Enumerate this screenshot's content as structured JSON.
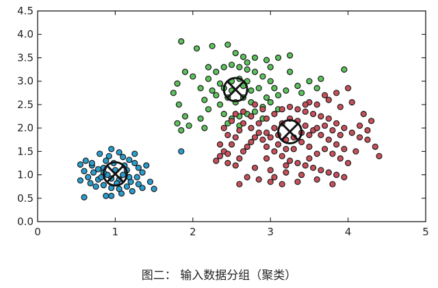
{
  "caption": "图二： 输入数据分组（聚类）",
  "chart_data": {
    "type": "scatter",
    "title": "",
    "xlabel": "",
    "ylabel": "",
    "xlim": [
      0,
      5
    ],
    "ylim": [
      0,
      4.5
    ],
    "x_ticks": [
      "0",
      "1",
      "2",
      "3",
      "4",
      "5"
    ],
    "y_ticks": [
      "0.0",
      "0.5",
      "1.0",
      "1.5",
      "2.0",
      "2.5",
      "3.0",
      "3.5",
      "4.0",
      "4.5"
    ],
    "grid": false,
    "legend": "none",
    "series": [
      {
        "color": "#2a9dcf",
        "centroid": [
          1.0,
          1.02
        ],
        "points": [
          [
            0.55,
            1.22
          ],
          [
            0.62,
            1.3
          ],
          [
            0.7,
            1.2
          ],
          [
            0.72,
            1.05
          ],
          [
            0.8,
            1.45
          ],
          [
            0.85,
            1.15
          ],
          [
            0.78,
            0.9
          ],
          [
            0.65,
            0.95
          ],
          [
            0.55,
            0.88
          ],
          [
            0.6,
            1.08
          ],
          [
            0.88,
            1.3
          ],
          [
            0.92,
            1.4
          ],
          [
            0.95,
            1.55
          ],
          [
            1.05,
            1.48
          ],
          [
            1.1,
            1.38
          ],
          [
            1.18,
            1.32
          ],
          [
            1.25,
            1.25
          ],
          [
            1.3,
            1.15
          ],
          [
            1.35,
            1.05
          ],
          [
            1.28,
            0.95
          ],
          [
            1.2,
            0.85
          ],
          [
            1.15,
            0.75
          ],
          [
            1.05,
            0.7
          ],
          [
            0.95,
            0.72
          ],
          [
            0.85,
            0.78
          ],
          [
            0.75,
            0.75
          ],
          [
            0.68,
            0.82
          ],
          [
            0.9,
            1.0
          ],
          [
            1.0,
            1.1
          ],
          [
            1.1,
            1.0
          ],
          [
            1.05,
            0.9
          ],
          [
            0.95,
            0.92
          ],
          [
            1.15,
            1.1
          ],
          [
            0.85,
            1.05
          ],
          [
            1.4,
            1.2
          ],
          [
            1.45,
            0.85
          ],
          [
            1.5,
            0.7
          ],
          [
            1.35,
            0.72
          ],
          [
            1.22,
            0.65
          ],
          [
            1.08,
            0.6
          ],
          [
            0.95,
            0.55
          ],
          [
            0.88,
            0.55
          ],
          [
            0.6,
            0.52
          ],
          [
            1.25,
            1.45
          ],
          [
            0.98,
            1.25
          ],
          [
            1.12,
            1.2
          ],
          [
            0.78,
            1.12
          ],
          [
            1.02,
            0.82
          ],
          [
            0.82,
            0.95
          ],
          [
            1.18,
            0.95
          ],
          [
            1.3,
            0.8
          ],
          [
            0.7,
            1.25
          ],
          [
            1.85,
            1.5
          ]
        ]
      },
      {
        "color": "#5cc25c",
        "centroid": [
          2.55,
          2.82
        ],
        "points": [
          [
            1.85,
            3.85
          ],
          [
            2.05,
            3.7
          ],
          [
            2.25,
            3.75
          ],
          [
            2.45,
            3.78
          ],
          [
            2.55,
            3.6
          ],
          [
            2.65,
            3.52
          ],
          [
            2.8,
            3.5
          ],
          [
            2.95,
            3.45
          ],
          [
            3.1,
            3.5
          ],
          [
            3.25,
            3.55
          ],
          [
            1.9,
            3.2
          ],
          [
            1.8,
            2.95
          ],
          [
            1.75,
            2.75
          ],
          [
            1.82,
            2.5
          ],
          [
            1.9,
            2.25
          ],
          [
            1.8,
            2.1
          ],
          [
            1.95,
            2.05
          ],
          [
            1.85,
            1.95
          ],
          [
            2.1,
            2.2
          ],
          [
            2.2,
            2.4
          ],
          [
            2.15,
            2.6
          ],
          [
            2.1,
            2.85
          ],
          [
            2.2,
            3.05
          ],
          [
            2.3,
            3.2
          ],
          [
            2.4,
            3.3
          ],
          [
            2.5,
            3.35
          ],
          [
            2.6,
            3.3
          ],
          [
            2.7,
            3.25
          ],
          [
            2.8,
            3.2
          ],
          [
            2.9,
            3.1
          ],
          [
            3.0,
            3.0
          ],
          [
            3.05,
            2.85
          ],
          [
            3.1,
            2.7
          ],
          [
            3.0,
            2.55
          ],
          [
            2.9,
            2.45
          ],
          [
            2.8,
            2.35
          ],
          [
            2.7,
            2.3
          ],
          [
            2.6,
            2.25
          ],
          [
            2.5,
            2.2
          ],
          [
            2.4,
            2.3
          ],
          [
            2.35,
            2.5
          ],
          [
            2.3,
            2.7
          ],
          [
            2.4,
            2.85
          ],
          [
            2.5,
            3.0
          ],
          [
            2.6,
            3.05
          ],
          [
            2.7,
            3.0
          ],
          [
            2.75,
            2.8
          ],
          [
            2.65,
            2.65
          ],
          [
            2.55,
            2.55
          ],
          [
            2.45,
            2.65
          ],
          [
            2.5,
            2.8
          ],
          [
            2.65,
            2.9
          ],
          [
            2.85,
            2.85
          ],
          [
            2.95,
            2.65
          ],
          [
            2.75,
            2.55
          ],
          [
            2.35,
            2.95
          ],
          [
            2.25,
            2.8
          ],
          [
            3.2,
            2.8
          ],
          [
            3.35,
            2.9
          ],
          [
            3.5,
            3.0
          ],
          [
            3.4,
            2.75
          ],
          [
            3.25,
            3.2
          ],
          [
            3.65,
            3.05
          ],
          [
            3.95,
            3.25
          ],
          [
            3.6,
            2.85
          ],
          [
            2.0,
            3.1
          ],
          [
            2.15,
            2.0
          ],
          [
            2.45,
            2.1
          ],
          [
            2.6,
            2.05
          ],
          [
            2.9,
            2.2
          ],
          [
            3.1,
            2.4
          ],
          [
            2.2,
            3.3
          ],
          [
            2.7,
            3.4
          ],
          [
            3.0,
            3.3
          ]
        ]
      },
      {
        "color": "#c8505a",
        "centroid": [
          3.25,
          1.92
        ],
        "points": [
          [
            2.3,
            1.3
          ],
          [
            2.35,
            1.4
          ],
          [
            2.4,
            1.5
          ],
          [
            2.45,
            1.25
          ],
          [
            2.55,
            1.2
          ],
          [
            2.6,
            1.35
          ],
          [
            2.65,
            1.5
          ],
          [
            2.7,
            1.6
          ],
          [
            2.75,
            1.7
          ],
          [
            2.8,
            1.8
          ],
          [
            2.85,
            1.9
          ],
          [
            2.75,
            2.0
          ],
          [
            2.65,
            2.1
          ],
          [
            2.6,
            1.95
          ],
          [
            2.55,
            1.8
          ],
          [
            2.5,
            1.65
          ],
          [
            2.45,
            1.85
          ],
          [
            2.4,
            2.0
          ],
          [
            2.5,
            2.15
          ],
          [
            2.55,
            2.3
          ],
          [
            2.65,
            2.35
          ],
          [
            2.75,
            2.25
          ],
          [
            2.85,
            2.1
          ],
          [
            2.95,
            2.2
          ],
          [
            3.05,
            2.3
          ],
          [
            3.15,
            2.4
          ],
          [
            3.25,
            2.45
          ],
          [
            3.35,
            2.4
          ],
          [
            3.45,
            2.35
          ],
          [
            3.55,
            2.3
          ],
          [
            3.65,
            2.25
          ],
          [
            3.75,
            2.2
          ],
          [
            3.85,
            2.1
          ],
          [
            3.95,
            2.0
          ],
          [
            4.05,
            1.9
          ],
          [
            4.15,
            1.8
          ],
          [
            4.25,
            1.75
          ],
          [
            4.35,
            1.6
          ],
          [
            4.4,
            1.4
          ],
          [
            4.1,
            1.5
          ],
          [
            3.95,
            1.55
          ],
          [
            3.85,
            1.65
          ],
          [
            3.75,
            1.75
          ],
          [
            3.65,
            1.85
          ],
          [
            3.55,
            1.95
          ],
          [
            3.45,
            2.05
          ],
          [
            3.35,
            2.15
          ],
          [
            3.25,
            2.2
          ],
          [
            3.15,
            2.1
          ],
          [
            3.05,
            2.0
          ],
          [
            2.95,
            1.9
          ],
          [
            2.9,
            1.75
          ],
          [
            2.95,
            1.6
          ],
          [
            3.05,
            1.5
          ],
          [
            3.15,
            1.4
          ],
          [
            3.25,
            1.3
          ],
          [
            3.35,
            1.25
          ],
          [
            3.45,
            1.2
          ],
          [
            3.55,
            1.15
          ],
          [
            3.65,
            1.1
          ],
          [
            3.75,
            1.05
          ],
          [
            3.85,
            1.0
          ],
          [
            3.95,
            0.95
          ],
          [
            3.8,
            0.8
          ],
          [
            3.6,
            0.9
          ],
          [
            3.4,
            1.0
          ],
          [
            3.2,
            1.05
          ],
          [
            3.0,
            1.1
          ],
          [
            2.8,
            1.15
          ],
          [
            2.7,
            0.95
          ],
          [
            2.6,
            0.8
          ],
          [
            2.85,
            0.9
          ],
          [
            3.0,
            0.85
          ],
          [
            3.15,
            0.8
          ],
          [
            3.35,
            0.85
          ],
          [
            3.5,
            1.35
          ],
          [
            3.6,
            1.45
          ],
          [
            3.7,
            1.55
          ],
          [
            3.8,
            1.45
          ],
          [
            3.9,
            1.35
          ],
          [
            4.0,
            1.25
          ],
          [
            3.1,
            1.65
          ],
          [
            3.2,
            1.75
          ],
          [
            3.3,
            1.8
          ],
          [
            3.4,
            1.7
          ],
          [
            3.5,
            1.6
          ],
          [
            3.3,
            1.55
          ],
          [
            3.2,
            1.55
          ],
          [
            3.1,
            1.85
          ],
          [
            3.0,
            1.8
          ],
          [
            3.4,
            1.9
          ],
          [
            3.5,
            1.85
          ],
          [
            3.6,
            2.0
          ],
          [
            3.7,
            2.05
          ],
          [
            3.8,
            1.95
          ],
          [
            3.9,
            1.85
          ],
          [
            3.6,
            2.5
          ],
          [
            3.75,
            2.6
          ],
          [
            3.85,
            2.75
          ],
          [
            4.0,
            2.85
          ],
          [
            3.7,
            2.7
          ],
          [
            3.5,
            2.55
          ],
          [
            2.9,
            2.4
          ],
          [
            2.8,
            2.5
          ],
          [
            4.2,
            2.3
          ],
          [
            4.3,
            2.15
          ],
          [
            4.15,
            2.05
          ],
          [
            4.25,
            1.95
          ],
          [
            2.35,
            1.65
          ],
          [
            2.45,
            1.45
          ],
          [
            3.9,
            2.45
          ],
          [
            4.05,
            2.55
          ],
          [
            3.45,
            2.5
          ],
          [
            2.95,
            1.35
          ],
          [
            3.2,
            1.2
          ],
          [
            3.05,
            0.95
          ]
        ]
      }
    ]
  }
}
